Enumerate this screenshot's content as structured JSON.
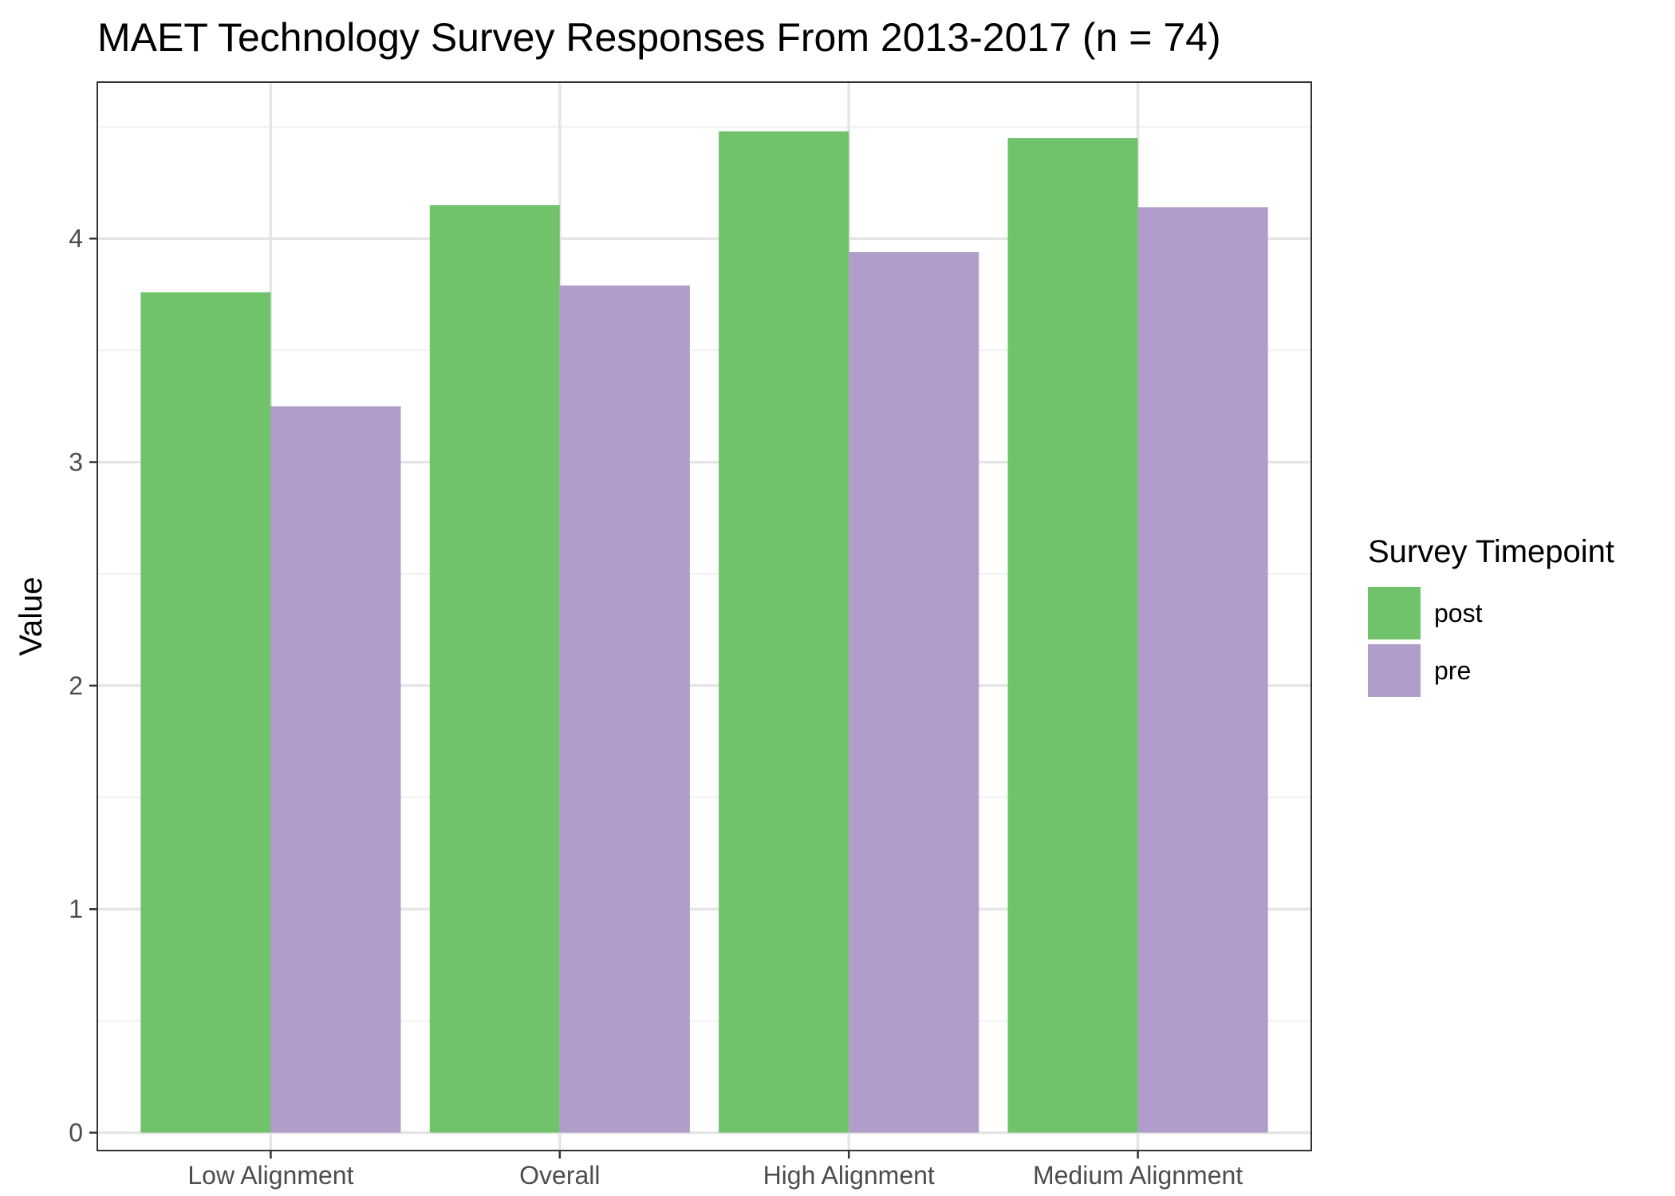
{
  "chart_data": {
    "type": "bar",
    "title": "MAET Technology Survey Responses From 2013-2017 (n = 74)",
    "xlabel": "",
    "ylabel": "Value",
    "categories": [
      "Low Alignment",
      "Overall",
      "High Alignment",
      "Medium Alignment"
    ],
    "series": [
      {
        "name": "post",
        "color": "#70c26b",
        "values": [
          3.76,
          4.15,
          4.48,
          4.45
        ]
      },
      {
        "name": "pre",
        "color": "#b09dca",
        "values": [
          3.25,
          3.79,
          3.94,
          4.14
        ]
      }
    ],
    "ylim": [
      -0.08,
      4.7
    ],
    "yticks": [
      0,
      1,
      2,
      3,
      4
    ],
    "ytick_labels": [
      "0",
      "1",
      "2",
      "3",
      "4"
    ],
    "grid": true,
    "legend": {
      "title": "Survey Timepoint",
      "position": "right"
    }
  }
}
